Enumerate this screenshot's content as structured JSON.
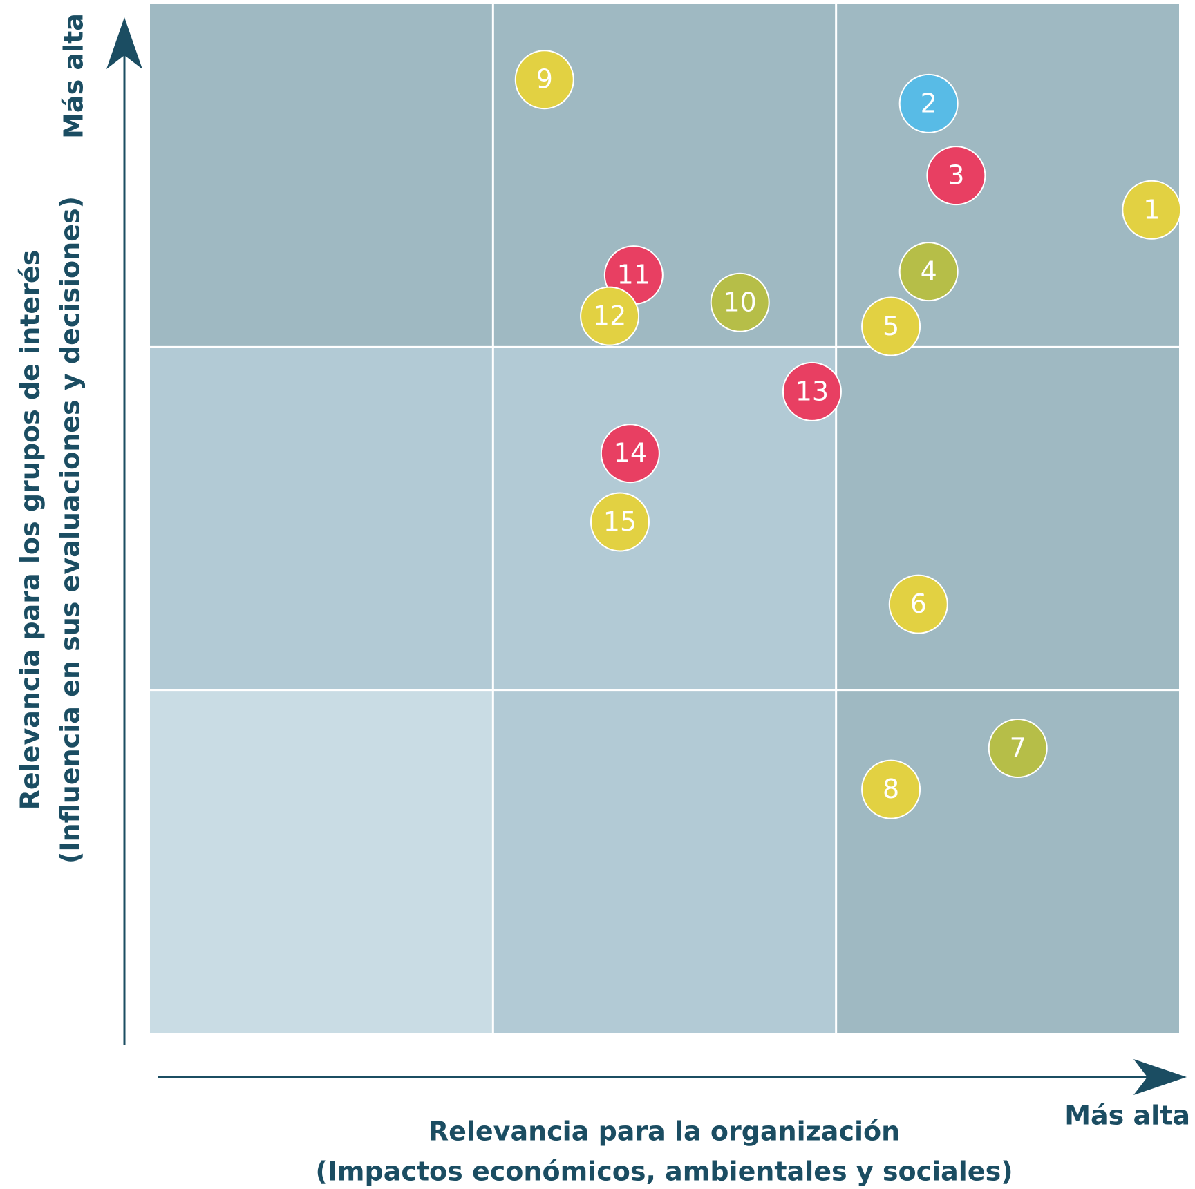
{
  "chart_data": {
    "type": "scatter",
    "xlabel": [
      "Relevancia para la organización",
      "(Impactos económicos, ambientales y sociales)"
    ],
    "ylabel": [
      "Relevancia para los grupos de interés",
      "(Influencia en sus evaluaciones y decisiones)"
    ],
    "x_high_label": "Más alta",
    "y_high_label": "Más alta",
    "xlim": [
      0,
      3
    ],
    "ylim": [
      0,
      3
    ],
    "points": [
      {
        "label": "1",
        "x": 2.92,
        "y": 2.4,
        "color": "#e2d142"
      },
      {
        "label": "2",
        "x": 2.27,
        "y": 2.71,
        "color": "#58bbe6"
      },
      {
        "label": "3",
        "x": 2.35,
        "y": 2.5,
        "color": "#e83f62"
      },
      {
        "label": "4",
        "x": 2.27,
        "y": 2.22,
        "color": "#b6be48"
      },
      {
        "label": "5",
        "x": 2.16,
        "y": 2.06,
        "color": "#e2d142"
      },
      {
        "label": "6",
        "x": 2.24,
        "y": 1.25,
        "color": "#e2d142"
      },
      {
        "label": "7",
        "x": 2.53,
        "y": 0.83,
        "color": "#b6be48"
      },
      {
        "label": "8",
        "x": 2.16,
        "y": 0.71,
        "color": "#e2d142"
      },
      {
        "label": "9",
        "x": 1.15,
        "y": 2.78,
        "color": "#e2d142"
      },
      {
        "label": "10",
        "x": 1.72,
        "y": 2.13,
        "color": "#b6be48"
      },
      {
        "label": "11",
        "x": 1.41,
        "y": 2.21,
        "color": "#e83f62"
      },
      {
        "label": "12",
        "x": 1.34,
        "y": 2.09,
        "color": "#e2d142"
      },
      {
        "label": "13",
        "x": 1.93,
        "y": 1.87,
        "color": "#e83f62"
      },
      {
        "label": "14",
        "x": 1.4,
        "y": 1.69,
        "color": "#e83f62"
      },
      {
        "label": "15",
        "x": 1.37,
        "y": 1.49,
        "color": "#e2d142"
      }
    ]
  }
}
